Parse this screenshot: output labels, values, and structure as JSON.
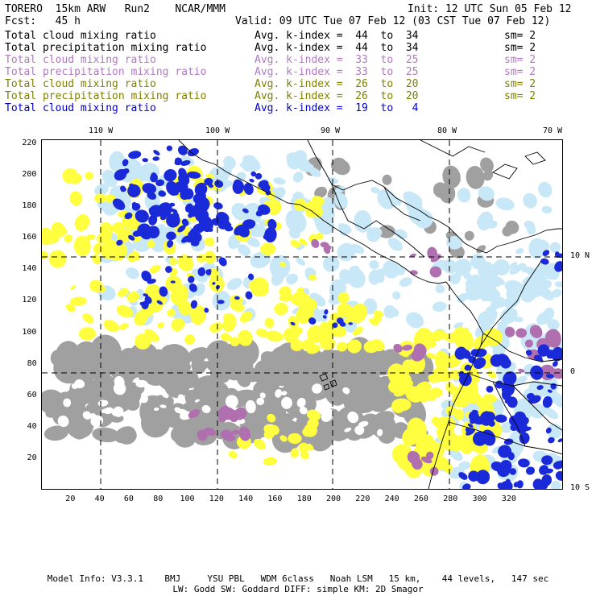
{
  "header": {
    "model": "TORERO  15km ARW   Run2    NCAR/MMM",
    "init": "Init: 12 UTC Sun 05 Feb 12",
    "fcst": "Fcst:   45 h",
    "valid": "Valid: 09 UTC Tue 07 Feb 12 (03 CST Tue 07 Feb 12)"
  },
  "legend": [
    {
      "field": "Total cloud mixing ratio",
      "avg": "Avg. k-index =  44  to  34",
      "sm": "sm= 2",
      "color": "#000000"
    },
    {
      "field": "Total precipitation mixing ratio",
      "avg": "Avg. k-index =  44  to  34",
      "sm": "sm= 2",
      "color": "#000000"
    },
    {
      "field": "Total cloud mixing ratio",
      "avg": "Avg. k-index =  33  to  25",
      "sm": "sm= 2",
      "color": "#b07ac0"
    },
    {
      "field": "Total precipitation mixing ratio",
      "avg": "Avg. k-index =  33  to  25",
      "sm": "sm= 2",
      "color": "#b07ac0"
    },
    {
      "field": "Total cloud mixing ratio",
      "avg": "Avg. k-index =  26  to  20",
      "sm": "sm= 2",
      "color": "#7f7f00"
    },
    {
      "field": "Total precipitation mixing ratio",
      "avg": "Avg. k-index =  26  to  20",
      "sm": "sm= 2",
      "color": "#7f7f00"
    },
    {
      "field": "Total cloud mixing ratio",
      "avg": "Avg. k-index =  19  to   4",
      "sm": "",
      "color": "#0000cc"
    }
  ],
  "map": {
    "lon_labels": [
      "110 W",
      "100 W",
      "90 W",
      "80 W",
      "70 W"
    ],
    "lat_labels": [
      "10 N",
      "0",
      "10 S"
    ],
    "x_ticks": [
      "20",
      "40",
      "60",
      "80",
      "100",
      "120",
      "140",
      "160",
      "180",
      "200",
      "220",
      "240",
      "260",
      "280",
      "300",
      "320"
    ],
    "y_ticks": [
      "20",
      "40",
      "60",
      "80",
      "100",
      "120",
      "140",
      "160",
      "180",
      "200",
      "220"
    ],
    "colors": {
      "high_cloud": "#a0a0a0",
      "mid_cloud": "#b070b0",
      "low_cloud": "#ffff40",
      "light_precip": "#c8e8f8",
      "heavy_cloud": "#1a2ad8"
    }
  },
  "footer": {
    "line1": "Model Info: V3.3.1    BMJ     YSU PBL   WDM 6class   Noah LSM   15 km,    44 levels,   147 sec",
    "line2": "LW: Godd SW: Goddard DIFF: simple KM: 2D Smagor"
  }
}
